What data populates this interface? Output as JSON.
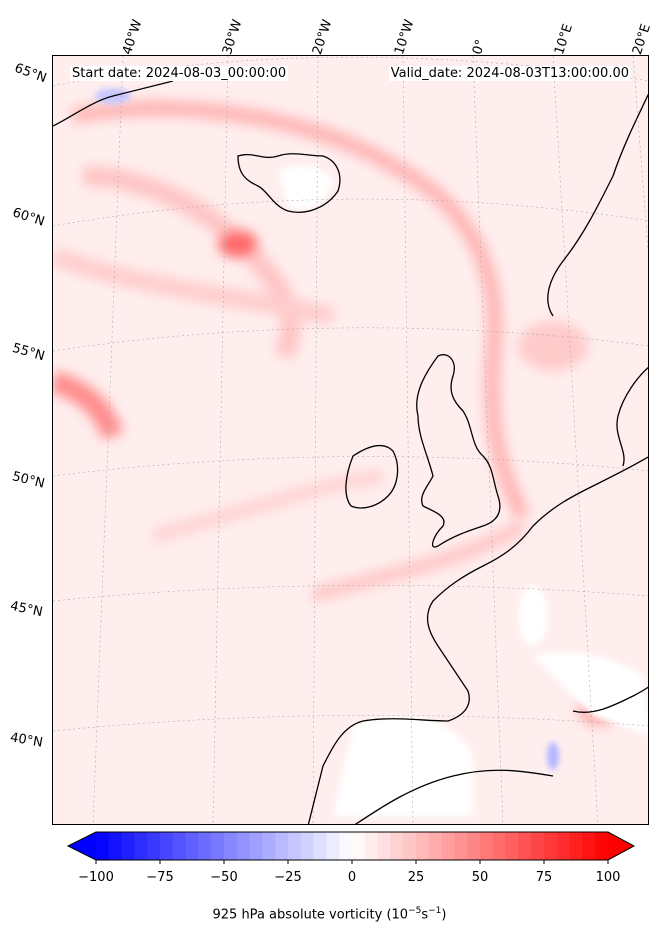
{
  "header": {
    "start_date": "Start date: 2024-08-03_00:00:00",
    "valid_date": "Valid_date: 2024-08-03T13:00:00.00"
  },
  "map": {
    "lon_ticks": [
      "40°W",
      "30°W",
      "20°W",
      "10°W",
      "0°",
      "10°E",
      "20°E"
    ],
    "lat_ticks": [
      "65°N",
      "60°N",
      "55°N",
      "50°N",
      "45°N",
      "40°N"
    ],
    "field": "925 hPa absolute vorticity",
    "colormap": "bwr"
  },
  "colorbar": {
    "ticks": [
      "−100",
      "−75",
      "−50",
      "−25",
      "0",
      "25",
      "50",
      "75",
      "100"
    ],
    "min": -100,
    "max": 100,
    "title": "925 hPa absolute vorticity (10",
    "title_sup1": "−5",
    "title_mid": "s",
    "title_sup2": "−1",
    "title_end": ")",
    "colors": {
      "low": "#0000ff",
      "mid": "#ffffff",
      "high": "#ff0000"
    }
  }
}
